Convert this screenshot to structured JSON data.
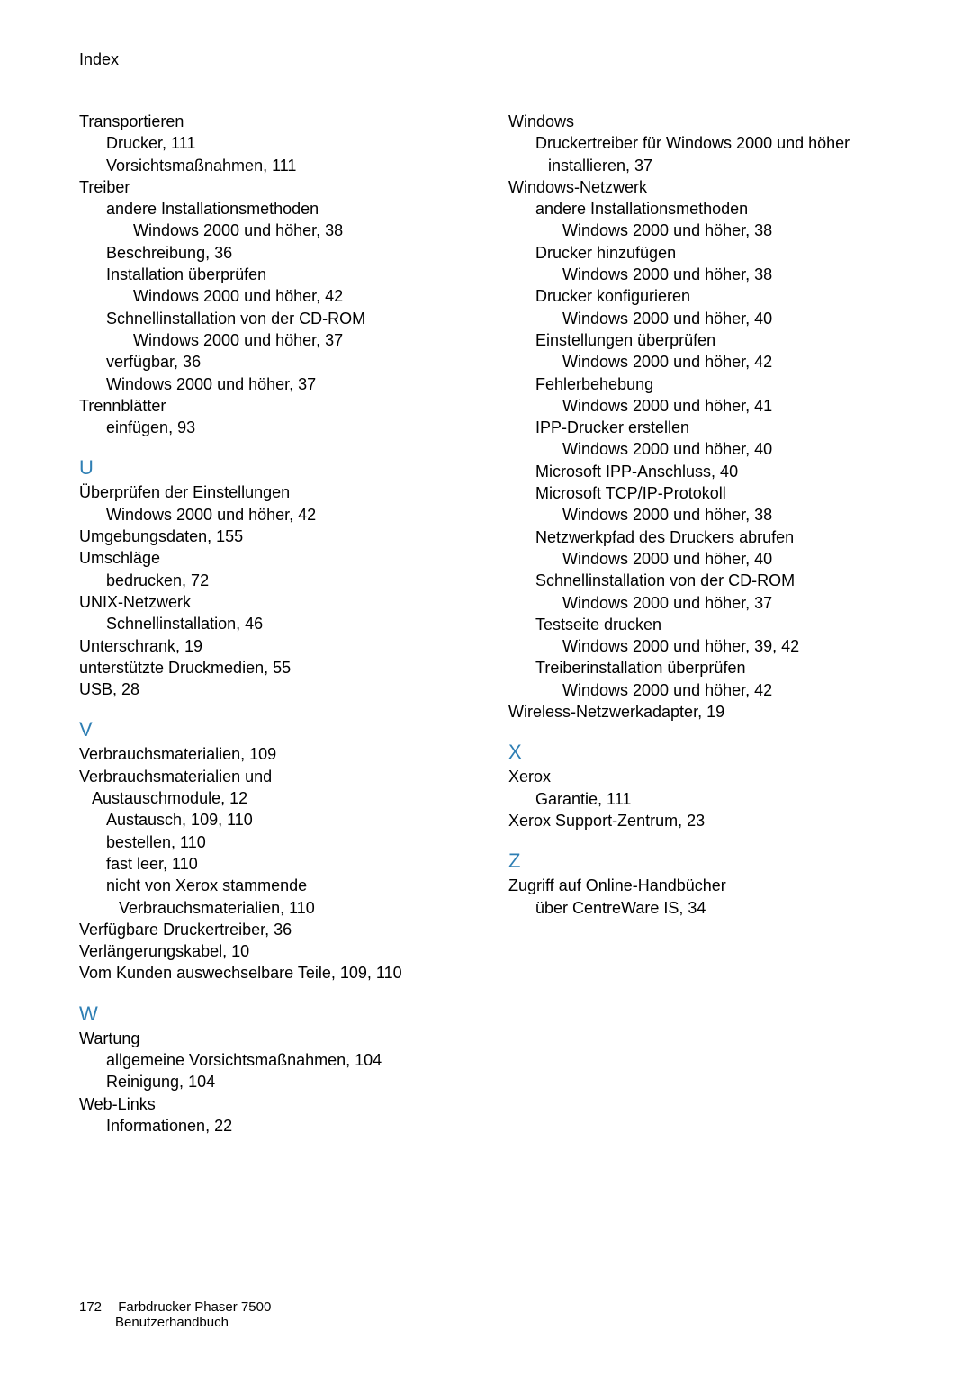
{
  "header": {
    "title": "Index"
  },
  "letter_color": "#2f7fb4",
  "left": [
    {
      "lvl": 0,
      "t": "Transportieren"
    },
    {
      "lvl": 1,
      "t": "Drucker, 111"
    },
    {
      "lvl": 1,
      "t": "Vorsichtsmaßnahmen, 111"
    },
    {
      "lvl": 0,
      "t": "Treiber"
    },
    {
      "lvl": 1,
      "t": "andere Installationsmethoden"
    },
    {
      "lvl": 2,
      "t": "Windows 2000 und höher, 38"
    },
    {
      "lvl": 1,
      "t": "Beschreibung, 36"
    },
    {
      "lvl": 1,
      "t": "Installation überprüfen"
    },
    {
      "lvl": 2,
      "t": "Windows 2000 und höher, 42"
    },
    {
      "lvl": 1,
      "t": "Schnellinstallation von der CD-ROM"
    },
    {
      "lvl": 2,
      "t": "Windows 2000 und höher, 37"
    },
    {
      "lvl": 1,
      "t": "verfügbar, 36"
    },
    {
      "lvl": 1,
      "t": "Windows 2000 und höher, 37"
    },
    {
      "lvl": 0,
      "t": "Trennblätter"
    },
    {
      "lvl": 1,
      "t": "einfügen, 93"
    },
    {
      "letter": "U"
    },
    {
      "lvl": 0,
      "t": "Überprüfen der Einstellungen"
    },
    {
      "lvl": 1,
      "t": "Windows 2000 und höher, 42"
    },
    {
      "lvl": 0,
      "t": "Umgebungsdaten, 155"
    },
    {
      "lvl": 0,
      "t": "Umschläge"
    },
    {
      "lvl": 1,
      "t": "bedrucken, 72"
    },
    {
      "lvl": 0,
      "t": "UNIX-Netzwerk"
    },
    {
      "lvl": 1,
      "t": "Schnellinstallation, 46"
    },
    {
      "lvl": 0,
      "t": "Unterschrank, 19"
    },
    {
      "lvl": 0,
      "t": "unterstützte Druckmedien, 55"
    },
    {
      "lvl": 0,
      "t": "USB, 28"
    },
    {
      "letter": "V"
    },
    {
      "lvl": 0,
      "t": "Verbrauchsmaterialien, 109"
    },
    {
      "lvl": 0,
      "t": "Verbrauchsmaterialien und"
    },
    {
      "lvl": "1h",
      "t": "Austauschmodule, 12"
    },
    {
      "lvl": 1,
      "t": "Austausch, 109, 110"
    },
    {
      "lvl": 1,
      "t": "bestellen, 110"
    },
    {
      "lvl": 1,
      "t": "fast leer, 110"
    },
    {
      "lvl": 1,
      "t": "nicht von Xerox stammende"
    },
    {
      "lvl": "2h",
      "t": "Verbrauchsmaterialien, 110"
    },
    {
      "lvl": 0,
      "t": "Verfügbare Druckertreiber, 36"
    },
    {
      "lvl": 0,
      "t": "Verlängerungskabel, 10"
    },
    {
      "lvl": 0,
      "t": "Vom Kunden auswechselbare Teile, 109, 110"
    },
    {
      "letter": "W"
    },
    {
      "lvl": 0,
      "t": "Wartung"
    },
    {
      "lvl": 1,
      "t": "allgemeine Vorsichtsmaßnahmen, 104"
    },
    {
      "lvl": 1,
      "t": "Reinigung, 104"
    },
    {
      "lvl": 0,
      "t": "Web-Links"
    },
    {
      "lvl": 1,
      "t": "Informationen, 22"
    }
  ],
  "right": [
    {
      "lvl": 0,
      "t": "Windows"
    },
    {
      "lvl": 1,
      "t": "Druckertreiber für Windows 2000 und höher"
    },
    {
      "lvl": "2h",
      "t": "installieren, 37"
    },
    {
      "lvl": 0,
      "t": "Windows-Netzwerk"
    },
    {
      "lvl": 1,
      "t": "andere Installationsmethoden"
    },
    {
      "lvl": 2,
      "t": "Windows 2000 und höher, 38"
    },
    {
      "lvl": 1,
      "t": "Drucker hinzufügen"
    },
    {
      "lvl": 2,
      "t": "Windows 2000 und höher, 38"
    },
    {
      "lvl": 1,
      "t": "Drucker konfigurieren"
    },
    {
      "lvl": 2,
      "t": "Windows 2000 und höher, 40"
    },
    {
      "lvl": 1,
      "t": "Einstellungen überprüfen"
    },
    {
      "lvl": 2,
      "t": "Windows 2000 und höher, 42"
    },
    {
      "lvl": 1,
      "t": "Fehlerbehebung"
    },
    {
      "lvl": 2,
      "t": "Windows 2000 und höher, 41"
    },
    {
      "lvl": 1,
      "t": "IPP-Drucker erstellen"
    },
    {
      "lvl": 2,
      "t": "Windows 2000 und höher, 40"
    },
    {
      "lvl": 1,
      "t": "Microsoft IPP-Anschluss, 40"
    },
    {
      "lvl": 1,
      "t": "Microsoft TCP/IP-Protokoll"
    },
    {
      "lvl": 2,
      "t": "Windows 2000 und höher, 38"
    },
    {
      "lvl": 1,
      "t": "Netzwerkpfad des Druckers abrufen"
    },
    {
      "lvl": 2,
      "t": "Windows 2000 und höher, 40"
    },
    {
      "lvl": 1,
      "t": "Schnellinstallation von der CD-ROM"
    },
    {
      "lvl": 2,
      "t": "Windows 2000 und höher, 37"
    },
    {
      "lvl": 1,
      "t": "Testseite drucken"
    },
    {
      "lvl": 2,
      "t": "Windows 2000 und höher, 39, 42"
    },
    {
      "lvl": 1,
      "t": "Treiberinstallation überprüfen"
    },
    {
      "lvl": 2,
      "t": "Windows 2000 und höher, 42"
    },
    {
      "lvl": 0,
      "t": "Wireless-Netzwerkadapter, 19"
    },
    {
      "letter": "X"
    },
    {
      "lvl": 0,
      "t": "Xerox"
    },
    {
      "lvl": 1,
      "t": "Garantie, 111"
    },
    {
      "lvl": 0,
      "t": "Xerox Support-Zentrum, 23"
    },
    {
      "letter": "Z"
    },
    {
      "lvl": 0,
      "t": "Zugriff auf Online-Handbücher"
    },
    {
      "lvl": 1,
      "t": "über CentreWare IS, 34"
    }
  ],
  "footer": {
    "page_number": "172",
    "line1": "Farbdrucker Phaser 7500",
    "line2": "Benutzerhandbuch"
  }
}
